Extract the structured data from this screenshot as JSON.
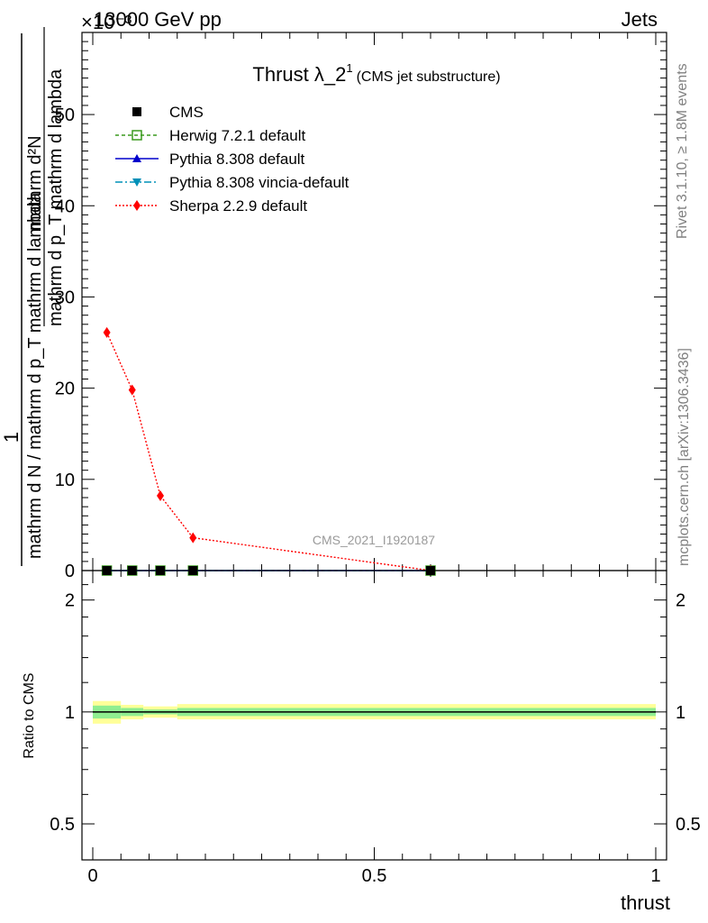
{
  "header": {
    "left": "13000 GeV pp",
    "right": "Jets",
    "scale_factor": "×10⁻³"
  },
  "side_labels": {
    "rivet": "Rivet 3.1.10, ≥ 1.8M events",
    "mcplots": "mcplots.cern.ch [arXiv:1306.3436]"
  },
  "watermark": "CMS_2021_I1920187",
  "colors": {
    "cms": "#000000",
    "herwig": "#3a9a1e",
    "pythia_default": "#0000cc",
    "pythia_vincia": "#0090b8",
    "sherpa": "#ff0000",
    "band_inner": "#90ee90",
    "band_outer": "#ffff99"
  },
  "chart_data": [
    {
      "type": "line",
      "panel": "main",
      "title": "Thrust λ_2",
      "title_superscript": "1",
      "subtitle": "(CMS jet substructure)",
      "ylabel_numerator": "1",
      "ylabel_denominator": "mathrm d N / mathrm d p_T mathrm d lambda",
      "ylabel_lines": [
        "mathrm d²N",
        "mathrm d p_T mathrm d lambda"
      ],
      "xlabel": "thrust",
      "xlim": [
        0,
        1
      ],
      "ylim": [
        0,
        0.059
      ],
      "y_multiplier": "1e-3",
      "yticks": [
        {
          "value": 0,
          "label": "0"
        },
        {
          "value": 0.01,
          "label": "10"
        },
        {
          "value": 0.02,
          "label": "20"
        },
        {
          "value": 0.03,
          "label": "30"
        },
        {
          "value": 0.04,
          "label": "40"
        },
        {
          "value": 0.05,
          "label": "50"
        }
      ],
      "legend_position": "top-left",
      "series": [
        {
          "name": "CMS",
          "key": "cms",
          "marker": "square",
          "x": [
            0.025,
            0.07,
            0.12,
            0.178,
            0.6
          ],
          "y": [
            0.0,
            0.0,
            0.0,
            0.0,
            0.0
          ]
        },
        {
          "name": "Herwig 7.2.1 default",
          "key": "herwig",
          "marker": "open-square",
          "dash": "4,3",
          "x": [
            0.025,
            0.07,
            0.12,
            0.178,
            0.6
          ],
          "y": [
            0.0,
            0.0,
            0.0,
            0.0,
            0.0
          ]
        },
        {
          "name": "Pythia 8.308 default",
          "key": "pythia_default",
          "marker": "triangle-up",
          "dash": "",
          "x": [
            0.025,
            0.07,
            0.12,
            0.178,
            0.6
          ],
          "y": [
            0.0,
            0.0,
            0.0,
            0.0,
            0.0
          ]
        },
        {
          "name": "Pythia 8.308 vincia-default",
          "key": "pythia_vincia",
          "marker": "triangle-down",
          "dash": "8,3,2,3",
          "x": [
            0.025,
            0.07,
            0.12,
            0.178,
            0.6
          ],
          "y": [
            0.0,
            0.0,
            0.0,
            0.0,
            0.0
          ]
        },
        {
          "name": "Sherpa 2.2.9 default",
          "key": "sherpa",
          "marker": "diamond",
          "dash": "2,2",
          "x": [
            0.025,
            0.07,
            0.12,
            0.178,
            0.6
          ],
          "y": [
            0.0261,
            0.0198,
            0.0082,
            0.0036,
            0.0
          ]
        }
      ]
    },
    {
      "type": "line",
      "panel": "ratio",
      "ylabel": "Ratio to CMS",
      "xlabel": "thrust",
      "xlim": [
        0,
        1
      ],
      "ylim": [
        0.4,
        2.4
      ],
      "y_scale": "log",
      "yticks": [
        {
          "value": 0.5,
          "label": "0.5"
        },
        {
          "value": 1,
          "label": "1"
        },
        {
          "value": 2,
          "label": "2"
        }
      ],
      "xticks": [
        {
          "value": 0,
          "label": "0"
        },
        {
          "value": 0.5,
          "label": "0.5"
        },
        {
          "value": 1,
          "label": "1"
        }
      ],
      "uncertainty_bands": [
        {
          "x0": 0.0,
          "x1": 0.05,
          "inner": [
            0.96,
            1.04
          ],
          "outer": [
            0.93,
            1.07
          ]
        },
        {
          "x0": 0.05,
          "x1": 0.09,
          "inner": [
            0.975,
            1.025
          ],
          "outer": [
            0.955,
            1.045
          ]
        },
        {
          "x0": 0.09,
          "x1": 0.15,
          "inner": [
            0.985,
            1.015
          ],
          "outer": [
            0.965,
            1.035
          ]
        },
        {
          "x0": 0.15,
          "x1": 0.2,
          "inner": [
            0.975,
            1.025
          ],
          "outer": [
            0.955,
            1.05
          ]
        },
        {
          "x0": 0.2,
          "x1": 1.0,
          "inner": [
            0.975,
            1.025
          ],
          "outer": [
            0.955,
            1.05
          ]
        }
      ],
      "reference_line": 1
    }
  ]
}
